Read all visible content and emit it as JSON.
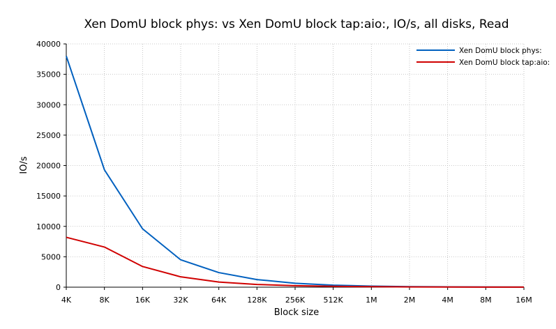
{
  "chart_data": {
    "type": "line",
    "title": "Xen DomU block phys: vs Xen DomU block tap:aio:, IO/s, all disks, Read",
    "xlabel": "Block size",
    "ylabel": "IO/s",
    "categories": [
      "4K",
      "8K",
      "16K",
      "32K",
      "64K",
      "128K",
      "256K",
      "512K",
      "1M",
      "2M",
      "4M",
      "8M",
      "16M"
    ],
    "ylim": [
      0,
      40000
    ],
    "yticks": [
      0,
      5000,
      10000,
      15000,
      20000,
      25000,
      30000,
      35000,
      40000
    ],
    "grid": true,
    "legend_position": "top-right",
    "series": [
      {
        "name": "Xen DomU block phys:",
        "color": "#0060bf",
        "values": [
          38000,
          19300,
          9600,
          4500,
          2400,
          1250,
          650,
          330,
          170,
          90,
          50,
          30,
          20
        ]
      },
      {
        "name": "Xen DomU block tap:aio:",
        "color": "#d00000",
        "values": [
          8200,
          6600,
          3400,
          1700,
          850,
          450,
          250,
          140,
          80,
          50,
          30,
          20,
          15
        ]
      }
    ]
  }
}
